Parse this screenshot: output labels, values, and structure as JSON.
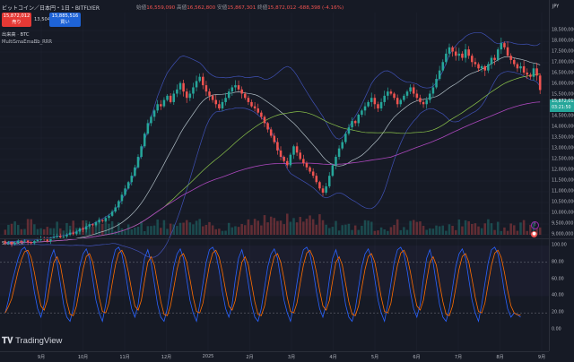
{
  "header": {
    "symbol_title": "ビットコイン／日本円・1日・BITFLYER",
    "open_label": "始値",
    "open_value": "16,559,090",
    "high_label": "高値",
    "high_value": "16,562,800",
    "low_label": "安値",
    "low_value": "15,867,301",
    "close_label": "終値",
    "close_value": "15,872,012",
    "change_value": "-688,398 (-4.16%)"
  },
  "order": {
    "sell_price": "15,872,012",
    "sell_label": "売り",
    "spread": "13,504",
    "buy_price": "15,885,516",
    "buy_label": "買い"
  },
  "indicators": {
    "volume_label": "出来高 · BTC",
    "ma_label": "MultiSmaEmaBb_RRR",
    "stoch_label": "Stoch RSI"
  },
  "currency": "JPY",
  "price_axis_ticks": [
    "18,500,000",
    "18,000,000",
    "17,500,000",
    "17,000,000",
    "16,500,000",
    "16,000,000",
    "15,500,000",
    "15,000,000",
    "14,500,000",
    "14,000,000",
    "13,500,000",
    "13,000,000",
    "12,500,000",
    "12,000,000",
    "11,500,000",
    "11,000,000",
    "10,500,000",
    "10,000,000",
    "9,500,000",
    "9,000,000"
  ],
  "price_tag": {
    "value": "15,872,012",
    "countdown": "03:21:50"
  },
  "stoch_axis_ticks": [
    "100.00",
    "80.00",
    "60.00",
    "40.00",
    "20.00",
    "0.00"
  ],
  "time_axis_ticks": [
    "9月",
    "10月",
    "11月",
    "12月",
    "2025",
    "2月",
    "3月",
    "4月",
    "5月",
    "6月",
    "7月",
    "8月",
    "9月"
  ],
  "logo_text": "TradingView",
  "colors": {
    "up": "#26a69a",
    "down": "#ef5350",
    "bg": "#161a25",
    "stoch_k": "#2962ff",
    "stoch_d": "#ff6d00"
  },
  "chart_data": {
    "type": "candlestick",
    "ylim": [
      9000000,
      18700000
    ],
    "close": [
      8600000,
      8650000,
      8550000,
      8620000,
      8700000,
      8680000,
      8720000,
      8650000,
      8600000,
      8700000,
      8750000,
      8820000,
      8780000,
      8700000,
      8850000,
      8900000,
      8950000,
      8880000,
      8920000,
      9000000,
      9100000,
      9050000,
      9150000,
      9300000,
      9250000,
      9400000,
      9500000,
      9450000,
      9600000,
      9700000,
      9650000,
      9800000,
      9900000,
      10100000,
      10300000,
      10600000,
      10900000,
      11200000,
      11500000,
      11800000,
      12200000,
      12700000,
      13200000,
      13800000,
      14300000,
      14600000,
      14900000,
      15200000,
      15100000,
      15400000,
      15600000,
      15300000,
      15700000,
      15900000,
      16200000,
      15800000,
      15500000,
      15700000,
      16000000,
      16300000,
      16500000,
      16100000,
      15800000,
      15600000,
      15400000,
      15200000,
      15000000,
      15300000,
      15500000,
      15800000,
      16000000,
      16100000,
      15900000,
      15700000,
      15500000,
      15300000,
      15100000,
      15000000,
      14800000,
      14600000,
      14300000,
      14000000,
      13700000,
      13400000,
      13000000,
      12700000,
      12500000,
      12300000,
      12800000,
      13200000,
      12900000,
      12600000,
      12400000,
      12200000,
      12000000,
      11800000,
      11500000,
      11200000,
      11000000,
      11300000,
      11800000,
      12300000,
      12700000,
      13100000,
      13400000,
      13800000,
      14100000,
      14400000,
      14300000,
      14700000,
      14900000,
      15100000,
      15300000,
      15500000,
      15200000,
      15000000,
      15300000,
      15600000,
      15800000,
      15700000,
      15500000,
      15200000,
      15400000,
      15600000,
      15800000,
      16000000,
      15700000,
      15500000,
      15300000,
      15200000,
      15400000,
      15700000,
      16000000,
      16400000,
      16800000,
      17200000,
      17600000,
      17900000,
      17700000,
      17500000,
      17600000,
      17400000,
      17800000,
      17500000,
      17200000,
      17100000,
      16900000,
      17000000,
      16800000,
      17100000,
      17400000,
      17300000,
      17800000,
      18100000,
      17900000,
      17500000,
      17300000,
      17100000,
      16900000,
      17000000,
      16700000,
      16600000,
      16500000,
      16900000,
      16559090,
      15872012
    ],
    "stoch_k": [
      20,
      35,
      55,
      70,
      85,
      95,
      98,
      90,
      70,
      45,
      25,
      15,
      30,
      60,
      85,
      95,
      80,
      55,
      30,
      15,
      10,
      25,
      50,
      75,
      90,
      96,
      85,
      60,
      35,
      20,
      10,
      30,
      55,
      80,
      95,
      98,
      90,
      70,
      45,
      25,
      15,
      30,
      60,
      85,
      95,
      80,
      55,
      30,
      15,
      10,
      25,
      50,
      75,
      90,
      96,
      85,
      60,
      35,
      20,
      10,
      30,
      55,
      80,
      95,
      98,
      90,
      70,
      45,
      25,
      15,
      30,
      60,
      85,
      95,
      80,
      55,
      30,
      15,
      10,
      25,
      50,
      75,
      90,
      96,
      85,
      60,
      35,
      20,
      10,
      30,
      55,
      80,
      95,
      98,
      90,
      70,
      45,
      25,
      15,
      30,
      60,
      85,
      95,
      80,
      55,
      30,
      15,
      10,
      25,
      50,
      75,
      90,
      96,
      85,
      60,
      35,
      20,
      10,
      30,
      55,
      80,
      95,
      98,
      90,
      70,
      45,
      25,
      15,
      30,
      60,
      85,
      95,
      80,
      55,
      30,
      15,
      10,
      25,
      50,
      75,
      90,
      96,
      85,
      60,
      35,
      20,
      10,
      30,
      55,
      80,
      95,
      98,
      90,
      70,
      45,
      25,
      15,
      20,
      18,
      15
    ]
  }
}
